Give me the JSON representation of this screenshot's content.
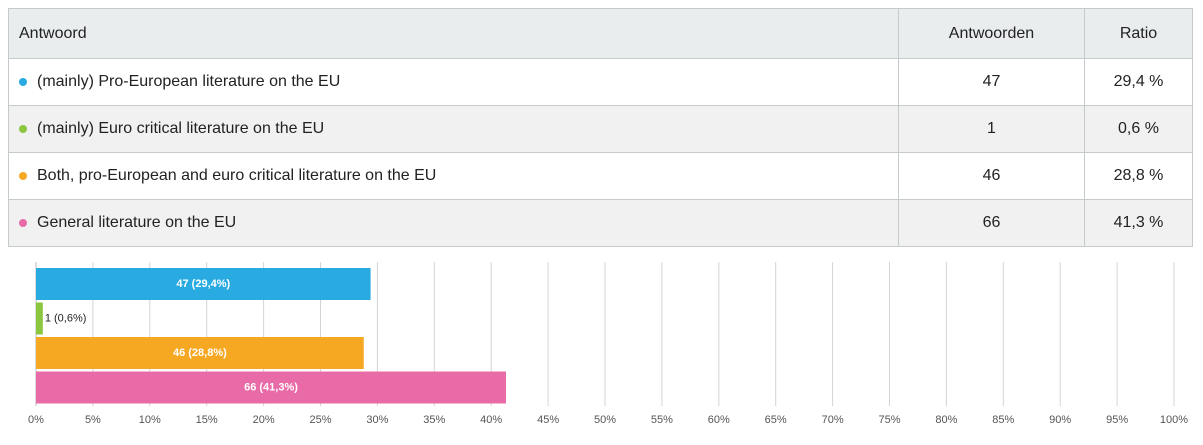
{
  "table": {
    "header": [
      "Antwoord",
      "Antwoorden",
      "Ratio"
    ],
    "rows": [
      {
        "color": "#29abe2",
        "answer": "(mainly) Pro-European literature on the EU",
        "count": 47,
        "ratio": "29,4 %"
      },
      {
        "color": "#8cc63f",
        "answer": "(mainly) Euro critical literature on the EU",
        "count": 1,
        "ratio": "0,6 %"
      },
      {
        "color": "#f7a823",
        "answer": "Both, pro-European and euro critical literature on the EU",
        "count": 46,
        "ratio": "28,8 %"
      },
      {
        "color": "#e86aa6",
        "answer": "General literature on the EU",
        "count": 66,
        "ratio": "41,3 %"
      }
    ]
  },
  "chart_data": {
    "type": "bar",
    "orientation": "horizontal",
    "categories": [
      null,
      null,
      null,
      null
    ],
    "values": [
      29.4,
      0.6,
      28.8,
      41.3
    ],
    "value_labels": [
      "47 (29,4%)",
      "1 (0,6%)",
      "46 (28,8%)",
      "66 (41,3%)"
    ],
    "colors": [
      "#29abe2",
      "#8cc63f",
      "#f7a823",
      "#e86aa6"
    ],
    "xlim": [
      0,
      100
    ],
    "xticks": [
      {
        "value": 0,
        "label": "0%"
      },
      {
        "value": 5,
        "label": "5%"
      },
      {
        "value": 10,
        "label": "10%"
      },
      {
        "value": 15,
        "label": "15%"
      },
      {
        "value": 20,
        "label": "20%"
      },
      {
        "value": 25,
        "label": "25%"
      },
      {
        "value": 30,
        "label": "30%"
      },
      {
        "value": 35,
        "label": "35%"
      },
      {
        "value": 40,
        "label": "40%"
      },
      {
        "value": 45,
        "label": "45%"
      },
      {
        "value": 50,
        "label": "50%"
      },
      {
        "value": 55,
        "label": "55%"
      },
      {
        "value": 60,
        "label": "60%"
      },
      {
        "value": 65,
        "label": "65%"
      },
      {
        "value": 70,
        "label": "70%"
      },
      {
        "value": 75,
        "label": "75%"
      },
      {
        "value": 80,
        "label": "80%"
      },
      {
        "value": 85,
        "label": "85%"
      },
      {
        "value": 90,
        "label": "90%"
      },
      {
        "value": 95,
        "label": "95%"
      },
      {
        "value": 100,
        "label": "100%"
      }
    ],
    "grid": true
  }
}
